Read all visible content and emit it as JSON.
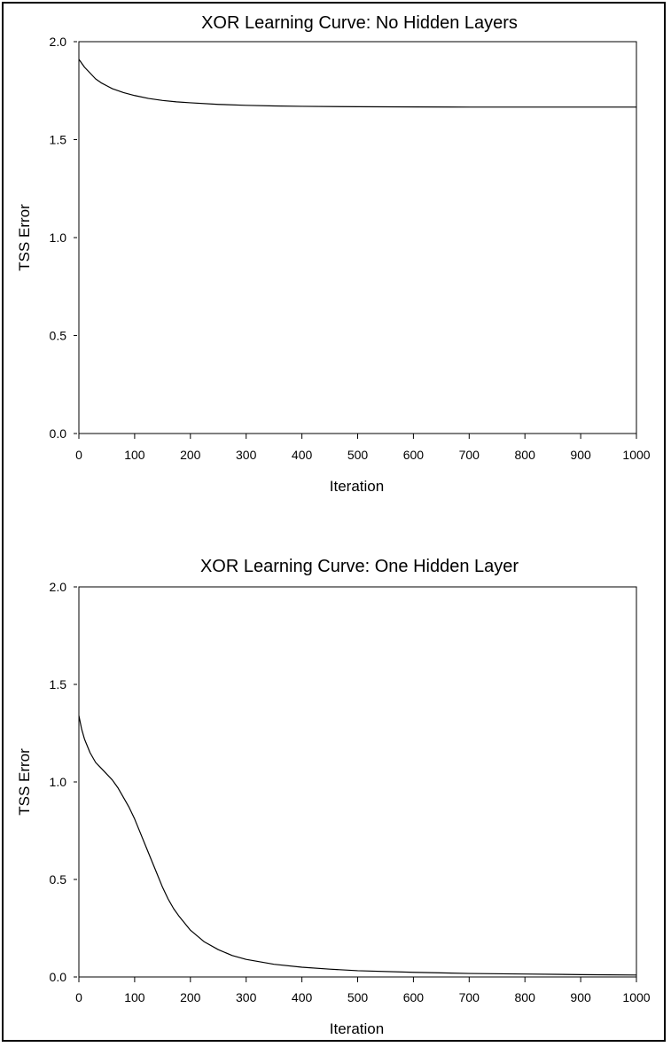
{
  "chart_data": [
    {
      "type": "line",
      "title": "XOR Learning Curve: No Hidden Layers",
      "xlabel": "Iteration",
      "ylabel": "TSS Error",
      "xlim": [
        0,
        1000
      ],
      "ylim": [
        0,
        2.0
      ],
      "x_ticks": [
        "0",
        "100",
        "200",
        "300",
        "400",
        "500",
        "600",
        "700",
        "800",
        "900",
        "1000"
      ],
      "y_ticks": [
        "0.0",
        "0.5",
        "1.0",
        "1.5",
        "2.0"
      ],
      "grid": false,
      "series": [
        {
          "x": [
            0,
            10,
            20,
            30,
            40,
            50,
            60,
            80,
            100,
            125,
            150,
            175,
            200,
            250,
            300,
            350,
            400,
            500,
            600,
            700,
            800,
            900,
            1000
          ],
          "y": [
            1.91,
            1.87,
            1.84,
            1.81,
            1.79,
            1.775,
            1.76,
            1.74,
            1.725,
            1.71,
            1.7,
            1.693,
            1.688,
            1.68,
            1.675,
            1.672,
            1.67,
            1.668,
            1.667,
            1.666,
            1.666,
            1.666,
            1.666
          ]
        }
      ]
    },
    {
      "type": "line",
      "title": "XOR Learning Curve: One Hidden Layer",
      "xlabel": "Iteration",
      "ylabel": "TSS Error",
      "xlim": [
        0,
        1000
      ],
      "ylim": [
        0,
        2.0
      ],
      "x_ticks": [
        "0",
        "100",
        "200",
        "300",
        "400",
        "500",
        "600",
        "700",
        "800",
        "900",
        "1000"
      ],
      "y_ticks": [
        "0.0",
        "0.5",
        "1.0",
        "1.5",
        "2.0"
      ],
      "grid": false,
      "series": [
        {
          "x": [
            0,
            5,
            10,
            20,
            30,
            40,
            50,
            60,
            70,
            80,
            90,
            100,
            110,
            120,
            130,
            140,
            150,
            160,
            170,
            180,
            200,
            225,
            250,
            275,
            300,
            350,
            400,
            450,
            500,
            600,
            700,
            800,
            900,
            1000
          ],
          "y": [
            1.34,
            1.27,
            1.22,
            1.15,
            1.1,
            1.07,
            1.04,
            1.01,
            0.97,
            0.92,
            0.87,
            0.81,
            0.74,
            0.67,
            0.6,
            0.53,
            0.46,
            0.4,
            0.35,
            0.31,
            0.24,
            0.18,
            0.14,
            0.11,
            0.09,
            0.065,
            0.05,
            0.04,
            0.032,
            0.024,
            0.018,
            0.015,
            0.012,
            0.01
          ]
        }
      ]
    }
  ]
}
